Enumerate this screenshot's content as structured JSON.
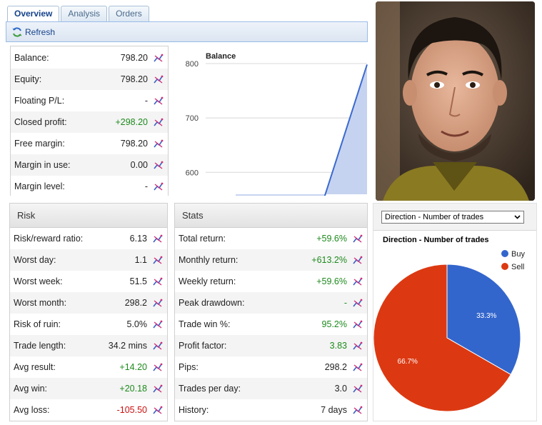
{
  "tabs": [
    "Overview",
    "Analysis",
    "Orders"
  ],
  "toolbar": {
    "refresh_label": "Refresh"
  },
  "account": {
    "rows": [
      {
        "label": "Balance:",
        "value": "798.20",
        "tone": ""
      },
      {
        "label": "Equity:",
        "value": "798.20",
        "tone": ""
      },
      {
        "label": "Floating P/L:",
        "value": "-",
        "tone": ""
      },
      {
        "label": "Closed profit:",
        "value": "+298.20",
        "tone": "pos"
      },
      {
        "label": "Free margin:",
        "value": "798.20",
        "tone": ""
      },
      {
        "label": "Margin in use:",
        "value": "0.00",
        "tone": ""
      },
      {
        "label": "Margin level:",
        "value": "-",
        "tone": ""
      }
    ]
  },
  "balance_chart": {
    "type": "area",
    "title": "Balance",
    "yticks": [
      "800",
      "700",
      "600"
    ],
    "ylim": [
      540,
      800
    ],
    "x": [
      0,
      1,
      2,
      3
    ],
    "values": [
      548,
      548,
      548,
      798.2
    ],
    "color": "#3a6ad0"
  },
  "risk": {
    "title": "Risk",
    "rows": [
      {
        "label": "Risk/reward ratio:",
        "value": "6.13",
        "tone": ""
      },
      {
        "label": "Worst day:",
        "value": "1.1",
        "tone": ""
      },
      {
        "label": "Worst week:",
        "value": "51.5",
        "tone": ""
      },
      {
        "label": "Worst month:",
        "value": "298.2",
        "tone": ""
      },
      {
        "label": "Risk of ruin:",
        "value": "5.0%",
        "tone": ""
      },
      {
        "label": "Trade length:",
        "value": "34.2 mins",
        "tone": ""
      },
      {
        "label": "Avg result:",
        "value": "+14.20",
        "tone": "pos"
      },
      {
        "label": "Avg win:",
        "value": "+20.18",
        "tone": "pos"
      },
      {
        "label": "Avg loss:",
        "value": "-105.50",
        "tone": "neg"
      }
    ]
  },
  "stats": {
    "title": "Stats",
    "rows": [
      {
        "label": "Total return:",
        "value": "+59.6%",
        "tone": "pos"
      },
      {
        "label": "Monthly return:",
        "value": "+613.2%",
        "tone": "pos"
      },
      {
        "label": "Weekly return:",
        "value": "+59.6%",
        "tone": "pos"
      },
      {
        "label": "Peak drawdown:",
        "value": "-",
        "tone": "pos"
      },
      {
        "label": "Trade win %:",
        "value": "95.2%",
        "tone": "pos"
      },
      {
        "label": "Profit factor:",
        "value": "3.83",
        "tone": "pos"
      },
      {
        "label": "Pips:",
        "value": "298.2",
        "tone": ""
      },
      {
        "label": "Trades per day:",
        "value": "3.0",
        "tone": ""
      },
      {
        "label": "History:",
        "value": "7 days",
        "tone": ""
      }
    ]
  },
  "direction": {
    "select_value": "Direction - Number of trades",
    "chart_data": {
      "type": "pie",
      "title": "Direction - Number of trades",
      "categories": [
        "Buy",
        "Sell"
      ],
      "values": [
        33.3,
        66.7
      ],
      "labels": [
        "33.3%",
        "66.7%"
      ],
      "colors": [
        "#3366cc",
        "#dc3912"
      ],
      "legend": "right"
    }
  },
  "colors": {
    "positive": "#1d8a1d",
    "negative": "#cc1111",
    "tab_active": "#15428b"
  }
}
